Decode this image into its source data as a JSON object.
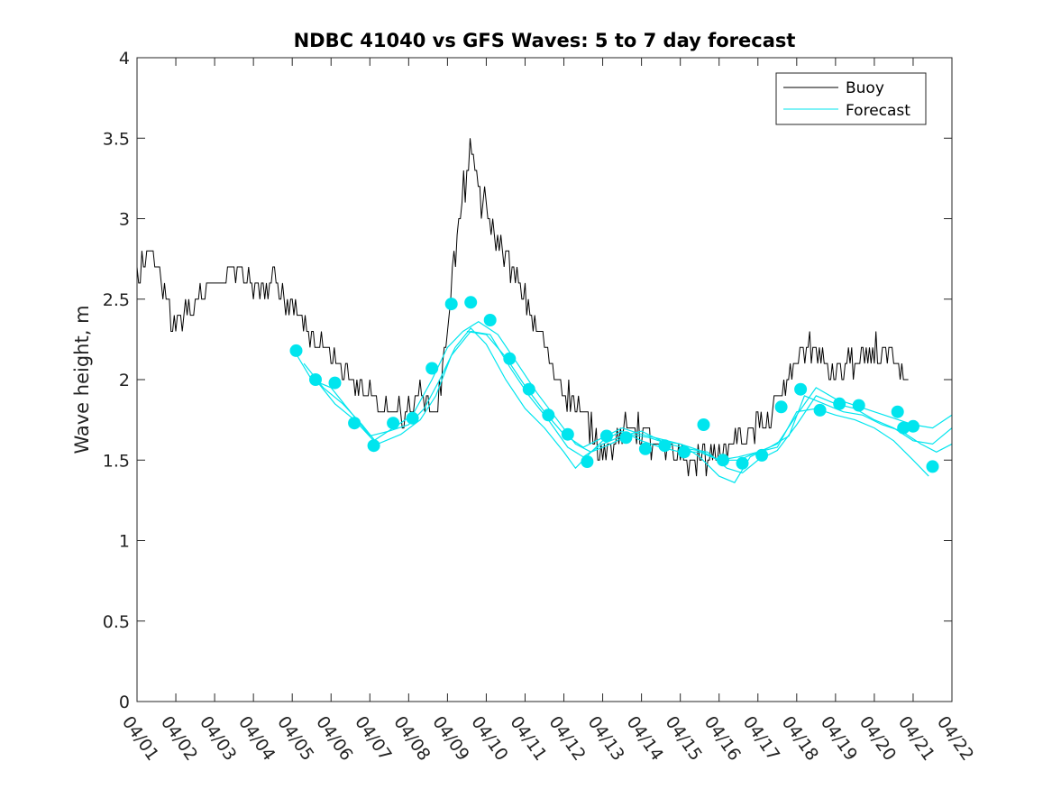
{
  "chart_data": {
    "type": "line",
    "title": "NDBC 41040 vs GFS Waves: 5 to 7 day forecast",
    "xlabel": "",
    "ylabel": "Wave height, m",
    "xlim": [
      0,
      21
    ],
    "ylim": [
      0,
      4
    ],
    "x_tick_labels": [
      "04/01",
      "04/02",
      "04/03",
      "04/04",
      "04/05",
      "04/06",
      "04/07",
      "04/08",
      "04/09",
      "04/10",
      "04/11",
      "04/12",
      "04/13",
      "04/14",
      "04/15",
      "04/16",
      "04/17",
      "04/18",
      "04/19",
      "04/20",
      "04/21",
      "04/22"
    ],
    "y_ticks": [
      0,
      0.5,
      1,
      1.5,
      2,
      2.5,
      3,
      3.5,
      4
    ],
    "y_tick_labels": [
      "0",
      "0.5",
      "1",
      "1.5",
      "2",
      "2.5",
      "3",
      "3.5",
      "4"
    ],
    "colors": {
      "buoy": "#000000",
      "forecast": "#00e5ee"
    },
    "legend": {
      "position": "top-right",
      "entries": [
        "Buoy",
        "Forecast"
      ]
    },
    "series": [
      {
        "name": "Buoy",
        "anchors": [
          [
            0.0,
            2.6
          ],
          [
            0.3,
            2.8
          ],
          [
            0.55,
            2.7
          ],
          [
            0.8,
            2.45
          ],
          [
            1.0,
            2.35
          ],
          [
            1.3,
            2.4
          ],
          [
            1.6,
            2.5
          ],
          [
            2.0,
            2.6
          ],
          [
            2.5,
            2.7
          ],
          [
            3.0,
            2.6
          ],
          [
            3.5,
            2.6
          ],
          [
            4.0,
            2.45
          ],
          [
            4.3,
            2.35
          ],
          [
            4.6,
            2.25
          ],
          [
            5.0,
            2.15
          ],
          [
            5.4,
            2.0
          ],
          [
            5.8,
            1.95
          ],
          [
            6.2,
            1.85
          ],
          [
            6.6,
            1.8
          ],
          [
            7.0,
            1.8
          ],
          [
            7.35,
            1.95
          ],
          [
            7.6,
            1.8
          ],
          [
            7.85,
            1.95
          ],
          [
            8.1,
            2.6
          ],
          [
            8.3,
            2.95
          ],
          [
            8.5,
            3.35
          ],
          [
            8.7,
            3.3
          ],
          [
            8.9,
            3.1
          ],
          [
            9.2,
            2.9
          ],
          [
            9.5,
            2.8
          ],
          [
            9.8,
            2.6
          ],
          [
            10.1,
            2.45
          ],
          [
            10.4,
            2.25
          ],
          [
            10.7,
            2.05
          ],
          [
            11.0,
            1.95
          ],
          [
            11.3,
            1.85
          ],
          [
            11.6,
            1.75
          ],
          [
            11.9,
            1.6
          ],
          [
            12.2,
            1.6
          ],
          [
            12.5,
            1.65
          ],
          [
            12.75,
            1.75
          ],
          [
            13.0,
            1.65
          ],
          [
            13.3,
            1.6
          ],
          [
            13.6,
            1.55
          ],
          [
            13.9,
            1.55
          ],
          [
            14.2,
            1.5
          ],
          [
            14.5,
            1.5
          ],
          [
            14.8,
            1.55
          ],
          [
            15.1,
            1.55
          ],
          [
            15.4,
            1.6
          ],
          [
            15.7,
            1.65
          ],
          [
            16.0,
            1.7
          ],
          [
            16.3,
            1.75
          ],
          [
            16.6,
            1.9
          ],
          [
            16.9,
            2.05
          ],
          [
            17.2,
            2.2
          ],
          [
            17.5,
            2.15
          ],
          [
            17.8,
            2.05
          ],
          [
            18.1,
            2.05
          ],
          [
            18.4,
            2.1
          ],
          [
            18.7,
            2.1
          ],
          [
            19.0,
            2.2
          ],
          [
            19.3,
            2.15
          ],
          [
            19.6,
            2.05
          ],
          [
            19.9,
            1.95
          ]
        ]
      },
      {
        "name": "Forecast",
        "runs": [
          [
            [
              4.0,
              2.2
            ],
            [
              4.5,
              2.0
            ],
            [
              5.0,
              1.95
            ],
            [
              5.5,
              1.8
            ],
            [
              6.0,
              1.65
            ],
            [
              6.5,
              1.68
            ],
            [
              7.0,
              1.72
            ],
            [
              7.4,
              1.82
            ],
            [
              7.8,
              2.0
            ],
            [
              8.2,
              2.2
            ],
            [
              8.6,
              2.32
            ],
            [
              9.0,
              2.22
            ],
            [
              9.5,
              2.0
            ],
            [
              10.0,
              1.82
            ],
            [
              10.5,
              1.7
            ],
            [
              11.0,
              1.55
            ],
            [
              11.3,
              1.45
            ],
            [
              11.7,
              1.55
            ],
            [
              12.0,
              1.62
            ],
            [
              12.5,
              1.68
            ],
            [
              13.0,
              1.62
            ],
            [
              13.5,
              1.58
            ],
            [
              14.0,
              1.55
            ],
            [
              14.5,
              1.55
            ],
            [
              15.0,
              1.5
            ],
            [
              15.5,
              1.52
            ],
            [
              16.0,
              1.55
            ],
            [
              16.5,
              1.58
            ],
            [
              17.0,
              1.8
            ],
            [
              17.5,
              1.82
            ],
            [
              18.0,
              1.78
            ],
            [
              18.5,
              1.75
            ],
            [
              19.0,
              1.7
            ],
            [
              19.5,
              1.62
            ],
            [
              20.0,
              1.5
            ],
            [
              20.4,
              1.4
            ]
          ],
          [
            [
              4.3,
              2.1
            ],
            [
              4.8,
              1.95
            ],
            [
              5.3,
              1.85
            ],
            [
              5.8,
              1.72
            ],
            [
              6.2,
              1.6
            ],
            [
              6.8,
              1.66
            ],
            [
              7.3,
              1.75
            ],
            [
              7.7,
              1.9
            ],
            [
              8.1,
              2.15
            ],
            [
              8.6,
              2.3
            ],
            [
              9.1,
              2.28
            ],
            [
              9.6,
              2.08
            ],
            [
              10.1,
              1.9
            ],
            [
              10.6,
              1.75
            ],
            [
              11.1,
              1.58
            ],
            [
              11.5,
              1.52
            ],
            [
              12.0,
              1.6
            ],
            [
              12.5,
              1.65
            ],
            [
              13.0,
              1.68
            ],
            [
              13.5,
              1.62
            ],
            [
              14.0,
              1.6
            ],
            [
              14.5,
              1.52
            ],
            [
              15.0,
              1.4
            ],
            [
              15.4,
              1.36
            ],
            [
              15.8,
              1.52
            ],
            [
              16.3,
              1.58
            ],
            [
              16.8,
              1.65
            ],
            [
              17.2,
              1.9
            ],
            [
              17.7,
              1.85
            ],
            [
              18.2,
              1.8
            ],
            [
              18.7,
              1.78
            ],
            [
              19.2,
              1.72
            ],
            [
              19.7,
              1.68
            ],
            [
              20.2,
              1.6
            ],
            [
              20.6,
              1.55
            ],
            [
              21.0,
              1.6
            ]
          ],
          [
            [
              4.6,
              2.0
            ],
            [
              5.1,
              1.85
            ],
            [
              5.6,
              1.75
            ],
            [
              6.1,
              1.62
            ],
            [
              6.6,
              1.7
            ],
            [
              7.1,
              1.78
            ],
            [
              7.6,
              2.0
            ],
            [
              8.0,
              2.2
            ],
            [
              8.4,
              2.3
            ],
            [
              8.8,
              2.36
            ],
            [
              9.3,
              2.28
            ],
            [
              9.8,
              2.1
            ],
            [
              10.3,
              1.92
            ],
            [
              10.8,
              1.76
            ],
            [
              11.3,
              1.6
            ],
            [
              11.7,
              1.55
            ],
            [
              12.2,
              1.6
            ],
            [
              12.7,
              1.66
            ],
            [
              13.2,
              1.64
            ],
            [
              13.7,
              1.6
            ],
            [
              14.2,
              1.57
            ],
            [
              14.7,
              1.55
            ],
            [
              15.2,
              1.45
            ],
            [
              15.6,
              1.42
            ],
            [
              16.0,
              1.5
            ],
            [
              16.5,
              1.56
            ],
            [
              17.0,
              1.72
            ],
            [
              17.5,
              1.9
            ],
            [
              18.0,
              1.85
            ],
            [
              18.5,
              1.82
            ],
            [
              19.0,
              1.75
            ],
            [
              19.5,
              1.7
            ],
            [
              20.0,
              1.62
            ],
            [
              20.5,
              1.6
            ],
            [
              21.0,
              1.7
            ]
          ],
          [
            [
              8.5,
              2.3
            ],
            [
              9.0,
              2.28
            ],
            [
              9.5,
              2.14
            ],
            [
              10.0,
              1.96
            ],
            [
              10.5,
              1.8
            ],
            [
              11.0,
              1.66
            ],
            [
              11.5,
              1.58
            ],
            [
              12.0,
              1.64
            ],
            [
              12.5,
              1.7
            ],
            [
              13.0,
              1.66
            ],
            [
              13.5,
              1.63
            ],
            [
              14.0,
              1.6
            ],
            [
              14.5,
              1.56
            ],
            [
              15.0,
              1.5
            ],
            [
              15.5,
              1.5
            ],
            [
              16.0,
              1.55
            ],
            [
              16.5,
              1.6
            ],
            [
              17.0,
              1.78
            ],
            [
              17.5,
              1.95
            ],
            [
              18.0,
              1.88
            ],
            [
              18.5,
              1.84
            ],
            [
              19.0,
              1.8
            ],
            [
              19.5,
              1.76
            ],
            [
              20.0,
              1.72
            ],
            [
              20.5,
              1.7
            ],
            [
              21.0,
              1.78
            ]
          ]
        ],
        "markers": [
          [
            4.1,
            2.18
          ],
          [
            4.6,
            2.0
          ],
          [
            5.1,
            1.98
          ],
          [
            5.6,
            1.73
          ],
          [
            6.1,
            1.59
          ],
          [
            6.6,
            1.73
          ],
          [
            7.1,
            1.76
          ],
          [
            7.6,
            2.07
          ],
          [
            8.1,
            2.47
          ],
          [
            8.6,
            2.48
          ],
          [
            9.1,
            2.37
          ],
          [
            9.6,
            2.13
          ],
          [
            10.1,
            1.94
          ],
          [
            10.6,
            1.78
          ],
          [
            11.1,
            1.66
          ],
          [
            11.6,
            1.49
          ],
          [
            12.1,
            1.65
          ],
          [
            12.6,
            1.64
          ],
          [
            13.1,
            1.57
          ],
          [
            13.6,
            1.59
          ],
          [
            14.1,
            1.55
          ],
          [
            14.6,
            1.72
          ],
          [
            15.1,
            1.5
          ],
          [
            15.6,
            1.48
          ],
          [
            16.1,
            1.53
          ],
          [
            16.6,
            1.83
          ],
          [
            17.1,
            1.94
          ],
          [
            17.6,
            1.81
          ],
          [
            18.1,
            1.85
          ],
          [
            18.6,
            1.84
          ],
          [
            19.6,
            1.8
          ],
          [
            19.75,
            1.7
          ],
          [
            20.0,
            1.71
          ],
          [
            20.5,
            1.46
          ]
        ]
      }
    ]
  }
}
